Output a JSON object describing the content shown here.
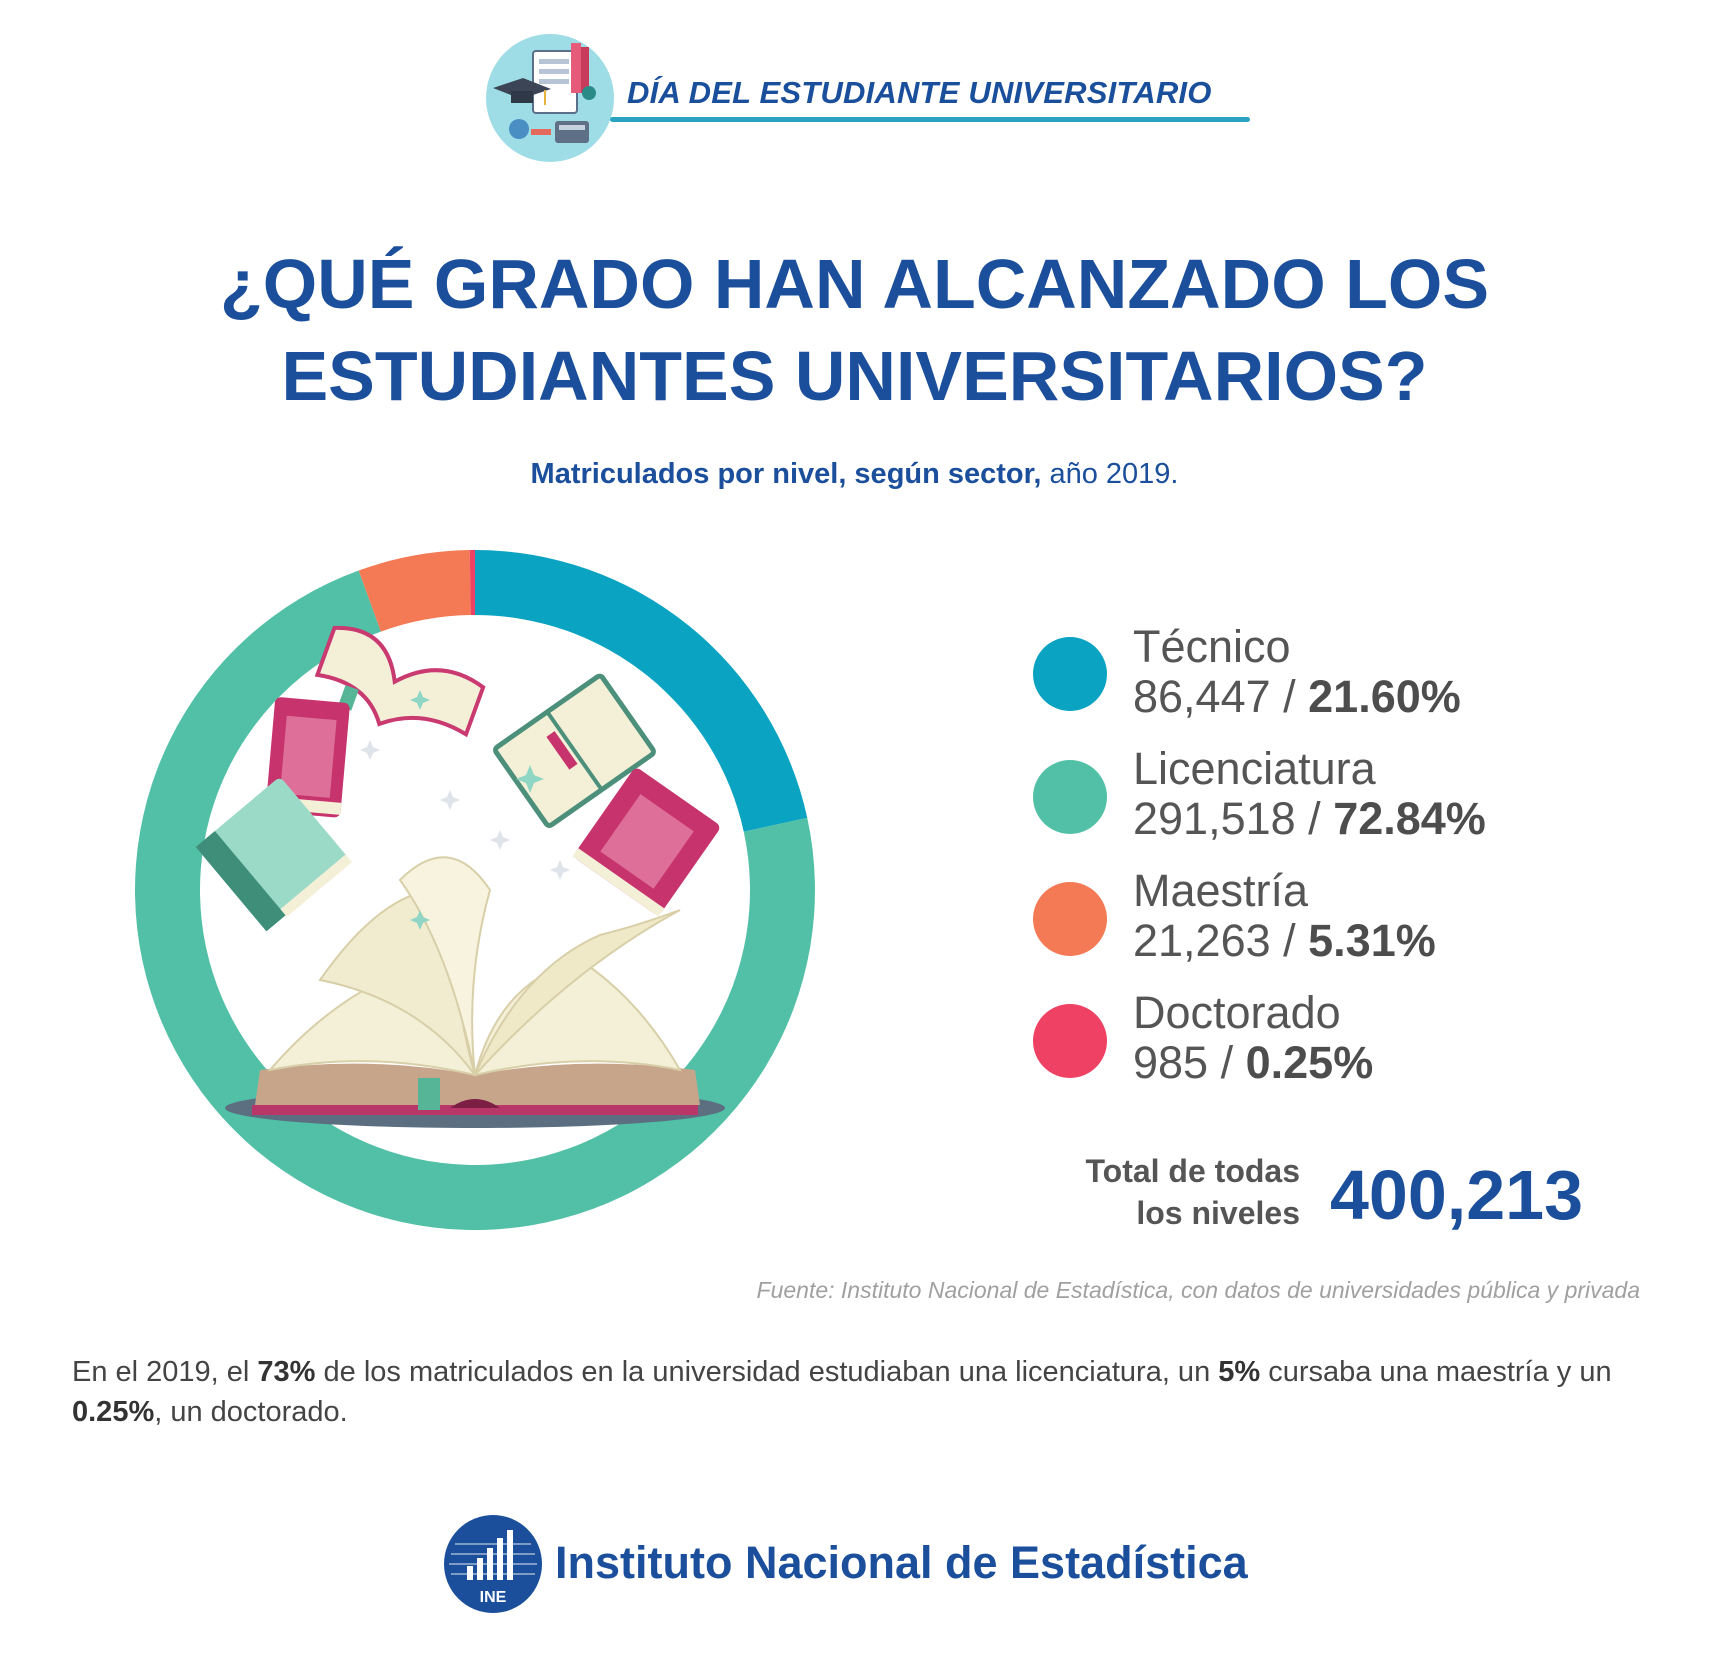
{
  "header": {
    "title": "DÍA DEL ESTUDIANTE UNIVERSITARIO"
  },
  "title": {
    "line1": "¿QUÉ GRADO HAN ALCANZADO LOS",
    "line2": "ESTUDIANTES UNIVERSITARIOS?"
  },
  "subtitle": {
    "bold": "Matriculados por nivel, según sector,",
    "normal": " año 2019."
  },
  "chart_data": {
    "type": "pie",
    "categories": [
      "Técnico",
      "Licenciatura",
      "Maestría",
      "Doctorado"
    ],
    "values": [
      86447,
      291518,
      21263,
      985
    ],
    "value_labels": [
      "86,447",
      "291,518",
      "21,263",
      "985"
    ],
    "percent_labels": [
      "21.60%",
      "72.84%",
      "5.31%",
      "0.25%"
    ],
    "colors": [
      "#0ba3c2",
      "#52c0a6",
      "#f47a55",
      "#ee4163"
    ],
    "legend_position": "right"
  },
  "total": {
    "label_line1": "Total de todas",
    "label_line2": "los niveles",
    "value": "400,213"
  },
  "source": "Fuente: Instituto Nacional de Estadística, con datos de universidades pública y privada",
  "summary": {
    "p1": "En el 2019, el ",
    "b1": "73%",
    "p2": " de los matriculados en la universidad estudiaban una licenciatura, un ",
    "b2": "5%",
    "p3": " cursaba una maestría y un ",
    "b3": "0.25%",
    "p4": ", un doctorado."
  },
  "footer": {
    "org_name": "Instituto Nacional de Estadística",
    "logo_text": "INE"
  }
}
